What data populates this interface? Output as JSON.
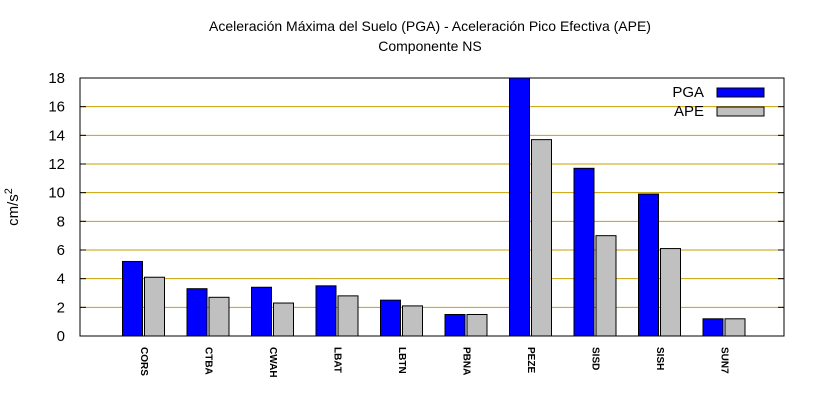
{
  "chart_data": {
    "type": "bar",
    "title": "Aceleración Máxima del Suelo (PGA) -  Aceleración Pico Efectiva (APE)",
    "subtitle": "Componente NS",
    "ylabel": "cm/s",
    "ylabel_sup": "2",
    "xlabel": "",
    "categories": [
      "CORS",
      "CTBA",
      "CWAH",
      "LBAT",
      "LBTN",
      "PBNA",
      "PEZE",
      "SISD",
      "SISH",
      "SUN7"
    ],
    "series": [
      {
        "name": "PGA",
        "color": "#0000ff",
        "values": [
          5.2,
          3.3,
          3.4,
          3.5,
          2.5,
          1.5,
          18.0,
          11.7,
          9.9,
          1.2
        ]
      },
      {
        "name": "APE",
        "color": "#c0c0c0",
        "values": [
          4.1,
          2.7,
          2.3,
          2.8,
          2.1,
          1.5,
          13.7,
          7.0,
          6.1,
          1.2
        ]
      }
    ],
    "ylim": [
      0,
      18
    ],
    "yticks": [
      "0",
      "2",
      "4",
      "6",
      "8",
      "10",
      "12",
      "14",
      "16",
      "18"
    ],
    "grid": true,
    "grid_color": "#c8a000",
    "legend_position": "top-right"
  }
}
